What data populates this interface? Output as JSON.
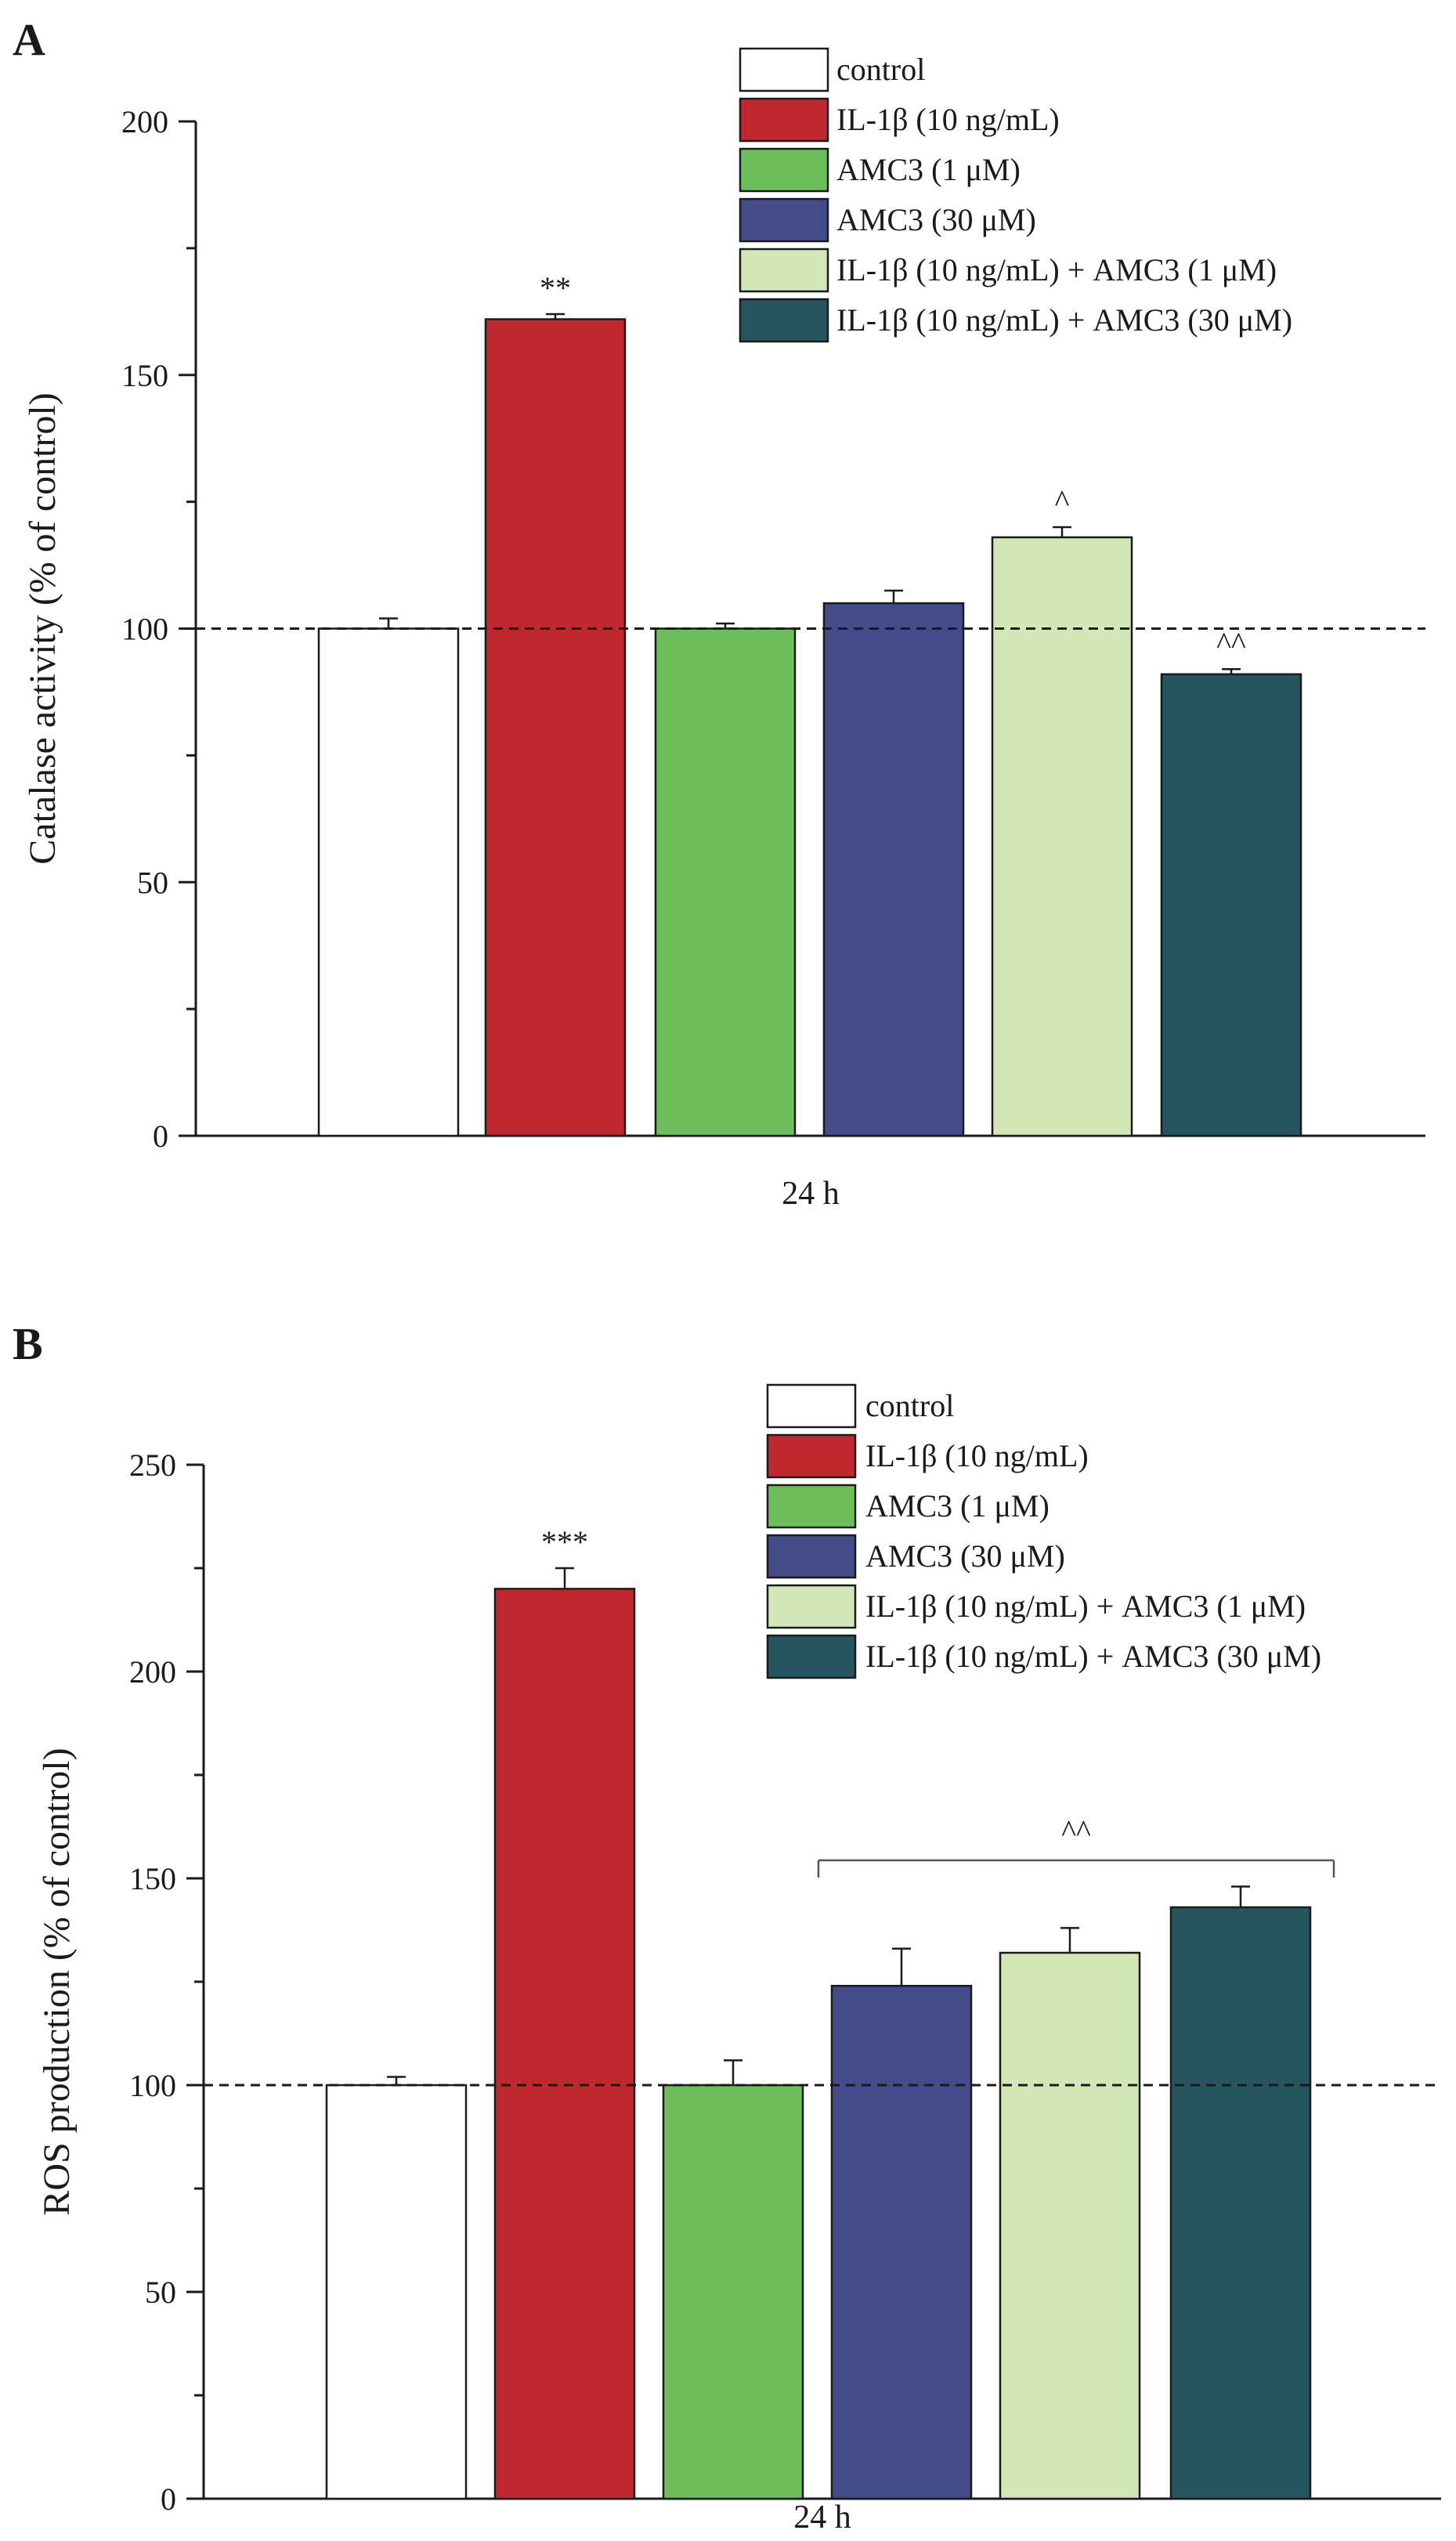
{
  "colors": {
    "control": "#ffffff",
    "il1b": "#c0282f",
    "amc3_1": "#6ebe5e",
    "amc3_30": "#434b88",
    "il1b_amc3_1": "#d2e6b8",
    "il1b_amc3_30": "#26555f",
    "axis": "#1a1a1a"
  },
  "chart_data": [
    {
      "type": "bar",
      "panel_label": "A",
      "xlabel": "24 h",
      "ylabel": "Catalase activity (% of control)",
      "ylim": [
        0,
        200
      ],
      "yticks": [
        0,
        50,
        100,
        150,
        200
      ],
      "reference_line": 100,
      "legend": {
        "placement": "top-right",
        "entries": [
          "control",
          "IL-1β (10 ng/mL)",
          "AMC3 (1 μM)",
          "AMC3 (30 μM)",
          "IL-1β (10 ng/mL) + AMC3 (1 μM)",
          "IL-1β (10 ng/mL) + AMC3 (30 μM)"
        ]
      },
      "series": [
        {
          "name": "control",
          "value": 100,
          "error": 2,
          "annotation": ""
        },
        {
          "name": "IL-1β (10 ng/mL)",
          "value": 161,
          "error": 1,
          "annotation": "**"
        },
        {
          "name": "AMC3 (1 μM)",
          "value": 100,
          "error": 1,
          "annotation": ""
        },
        {
          "name": "AMC3 (30 μM)",
          "value": 105,
          "error": 2.5,
          "annotation": ""
        },
        {
          "name": "IL-1β (10 ng/mL) + AMC3 (1 μM)",
          "value": 118,
          "error": 2,
          "annotation": "^"
        },
        {
          "name": "IL-1β (10 ng/mL) + AMC3 (30 μM)",
          "value": 91,
          "error": 1,
          "annotation": "^^"
        }
      ],
      "bracket": null
    },
    {
      "type": "bar",
      "panel_label": "B",
      "xlabel": "24 h",
      "ylabel": "ROS production (% of control)",
      "ylim": [
        0,
        250
      ],
      "yticks": [
        0,
        50,
        100,
        150,
        200,
        250
      ],
      "reference_line": 100,
      "legend": {
        "placement": "top-right",
        "entries": [
          "control",
          "IL-1β (10 ng/mL)",
          "AMC3 (1 μM)",
          "AMC3 (30 μM)",
          "IL-1β (10 ng/mL) + AMC3 (1 μM)",
          "IL-1β (10 ng/mL) + AMC3 (30 μM)"
        ]
      },
      "series": [
        {
          "name": "control",
          "value": 100,
          "error": 2,
          "annotation": ""
        },
        {
          "name": "IL-1β (10 ng/mL)",
          "value": 220,
          "error": 5,
          "annotation": "***"
        },
        {
          "name": "AMC3 (1 μM)",
          "value": 100,
          "error": 6,
          "annotation": ""
        },
        {
          "name": "AMC3 (30 μM)",
          "value": 124,
          "error": 9,
          "annotation": ""
        },
        {
          "name": "IL-1β (10 ng/mL) + AMC3 (1 μM)",
          "value": 132,
          "error": 6,
          "annotation": ""
        },
        {
          "name": "IL-1β (10 ng/mL) + AMC3 (30 μM)",
          "value": 143,
          "error": 5,
          "annotation": ""
        }
      ],
      "bracket": {
        "from_bar": 4,
        "to_bar": 5,
        "level": 150,
        "label": "^^"
      }
    }
  ]
}
